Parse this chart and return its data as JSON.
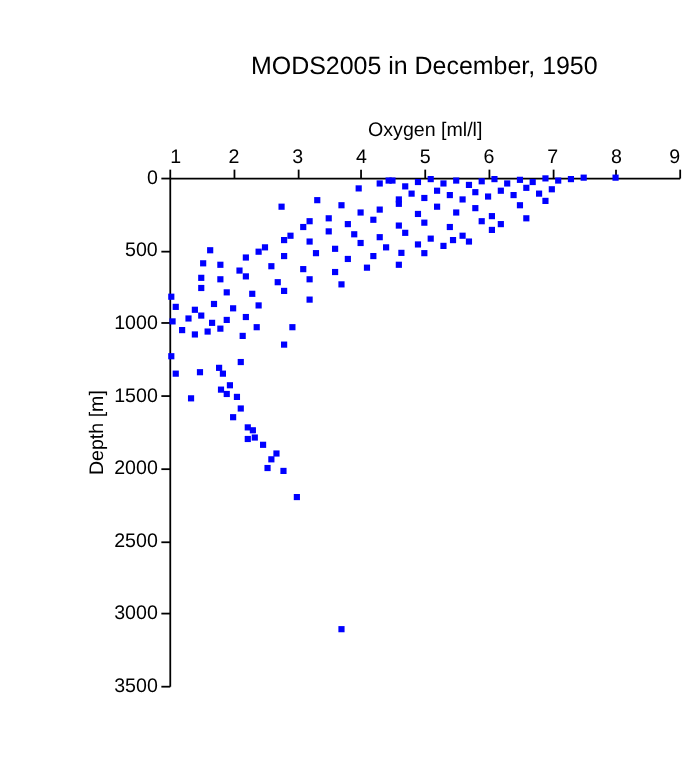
{
  "chart_data": {
    "type": "scatter",
    "title": "MODS2005 in December, 1950",
    "xlabel": "Oxygen [ml/l]",
    "ylabel": "Depth [m]",
    "xlim": [
      1,
      9
    ],
    "ylim": [
      3500,
      0
    ],
    "xticks": [
      1,
      2,
      3,
      4,
      5,
      6,
      7,
      8,
      9
    ],
    "yticks": [
      0,
      500,
      1000,
      1500,
      2000,
      2500,
      3000,
      3500
    ],
    "grid": false,
    "marker": "square",
    "legend": false,
    "series": [
      {
        "color": "#0000ff",
        "x": [
          8.0,
          7.5,
          7.3,
          7.1,
          6.9,
          6.7,
          6.5,
          6.3,
          6.1,
          5.9,
          5.7,
          5.5,
          5.3,
          5.1,
          4.9,
          4.7,
          4.5,
          4.3,
          4.44,
          7.0,
          6.8,
          6.6,
          6.4,
          6.2,
          6.0,
          5.8,
          5.6,
          5.4,
          5.2,
          5.0,
          4.8,
          4.6,
          3.97,
          6.9,
          6.5,
          6.06,
          5.8,
          5.5,
          5.2,
          4.9,
          4.6,
          4.3,
          4.0,
          3.7,
          3.32,
          6.6,
          6.2,
          5.9,
          5.4,
          5.0,
          4.6,
          4.2,
          3.8,
          3.5,
          3.2,
          2.76,
          6.06,
          5.6,
          5.1,
          4.7,
          4.3,
          3.9,
          3.5,
          3.1,
          2.9,
          5.7,
          5.3,
          4.9,
          4.4,
          4.0,
          3.6,
          3.2,
          2.8,
          2.5,
          5.45,
          5.0,
          4.64,
          4.2,
          3.8,
          3.3,
          2.8,
          2.4,
          2.2,
          1.64,
          4.6,
          4.1,
          3.6,
          3.1,
          2.6,
          2.1,
          1.8,
          1.53,
          3.7,
          3.2,
          2.7,
          2.2,
          1.8,
          1.5,
          3.2,
          2.8,
          2.3,
          1.9,
          1.5,
          1.03,
          2.4,
          2.0,
          1.7,
          1.4,
          1.1,
          2.2,
          1.9,
          1.67,
          1.5,
          1.3,
          1.05,
          2.37,
          2.93,
          2.15,
          1.8,
          1.6,
          1.4,
          1.2,
          2.8,
          1.03,
          2.12,
          1.78,
          1.48,
          1.84,
          1.1,
          1.34,
          1.95,
          1.81,
          1.9,
          2.06,
          2.12,
          2.0,
          2.23,
          2.31,
          2.23,
          2.34,
          2.47,
          2.6,
          2.68,
          2.54,
          2.79,
          3.0,
          3.7
        ],
        "values": [
          0,
          0,
          10,
          20,
          5,
          30,
          15,
          40,
          10,
          25,
          50,
          20,
          40,
          10,
          30,
          60,
          20,
          40,
          20,
          80,
          110,
          70,
          120,
          90,
          130,
          100,
          150,
          120,
          90,
          140,
          110,
          150,
          74,
          160,
          190,
          265,
          210,
          240,
          200,
          250,
          180,
          220,
          240,
          190,
          155,
          280,
          320,
          300,
          340,
          310,
          330,
          290,
          320,
          280,
          300,
          200,
          360,
          400,
          420,
          380,
          410,
          390,
          370,
          340,
          400,
          440,
          470,
          460,
          480,
          450,
          490,
          440,
          430,
          480,
          430,
          520,
          518,
          540,
          560,
          520,
          540,
          510,
          550,
          500,
          600,
          620,
          650,
          630,
          610,
          640,
          600,
          590,
          735,
          700,
          720,
          680,
          700,
          690,
          840,
          780,
          800,
          790,
          760,
          820,
          880,
          900,
          870,
          910,
          890,
          960,
          980,
          1000,
          950,
          970,
          990,
          1030,
          1030,
          1090,
          1040,
          1060,
          1080,
          1050,
          1150,
          1230,
          1270,
          1310,
          1340,
          1350,
          1350,
          1520,
          1430,
          1460,
          1490,
          1510,
          1590,
          1650,
          1720,
          1740,
          1800,
          1790,
          1840,
          1940,
          1900,
          2000,
          2020,
          2200,
          3110
        ]
      }
    ]
  }
}
